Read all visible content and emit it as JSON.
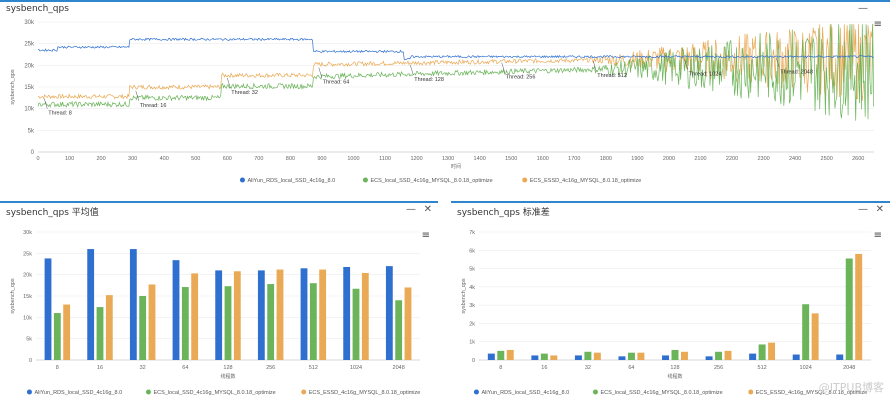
{
  "panels": {
    "top": {
      "title": "sysbench_qps",
      "minimize": "—",
      "menu": "≡"
    },
    "left": {
      "title": "sysbench_qps 平均值",
      "minimize": "—",
      "close": "✕",
      "menu": "≡"
    },
    "right": {
      "title": "sysbench_qps 标准差",
      "minimize": "—",
      "close": "✕",
      "menu": "≡"
    }
  },
  "watermark": "@ITPUB博客",
  "colors": {
    "blue": "#2e6fcf",
    "green": "#6bb45a",
    "orange": "#eaaa55"
  },
  "chart_data": [
    {
      "type": "line",
      "title": "sysbench_qps",
      "xlabel": "时间",
      "ylabel": "sysbench_qps",
      "xlim": [
        0,
        2650
      ],
      "ylim": [
        0,
        30000
      ],
      "x_ticks": [
        0,
        100,
        200,
        300,
        400,
        500,
        600,
        700,
        800,
        900,
        1000,
        1100,
        1200,
        1300,
        1400,
        1500,
        1600,
        1700,
        1800,
        1900,
        2000,
        2100,
        2200,
        2300,
        2400,
        2500,
        2600
      ],
      "y_ticks": [
        0,
        5000,
        10000,
        15000,
        20000,
        25000,
        30000
      ],
      "y_tick_labels": [
        "0",
        "5k",
        "10k",
        "15k",
        "20k",
        "25k",
        "30k"
      ],
      "series": [
        {
          "name": "AliYun_RDS_local_SSD_4c16g_8.0",
          "color": "#2e6fcf",
          "x": [
            0,
            60,
            60,
            290,
            290,
            870,
            870,
            1160,
            1160,
            2650
          ],
          "y": [
            23500,
            23500,
            24200,
            24200,
            26000,
            26000,
            23200,
            23200,
            22000,
            22000
          ],
          "noise": 250
        },
        {
          "name": "ECS_local_SSD_4c16g_MYSQL_8.0.18_optimize",
          "color": "#6bb45a",
          "x": [
            0,
            290,
            290,
            580,
            580,
            870,
            870,
            2000,
            2650
          ],
          "y": [
            11000,
            11000,
            12500,
            12500,
            15200,
            15200,
            17400,
            19500,
            19500
          ],
          "noise": 600
        },
        {
          "name": "ECS_ESSD_4c16g_MYSQL_8.0.18_optimize",
          "color": "#eaaa55",
          "x": [
            0,
            290,
            290,
            580,
            580,
            870,
            870,
            2000,
            2650
          ],
          "y": [
            12800,
            12800,
            15000,
            15000,
            17700,
            17700,
            20200,
            21500,
            21500
          ],
          "noise": 500
        }
      ],
      "annotations": [
        {
          "label": "Thread: 8",
          "x": 20,
          "y": 10000
        },
        {
          "label": "Thread: 16",
          "x": 310,
          "y": 11800
        },
        {
          "label": "Thread: 32",
          "x": 600,
          "y": 14800
        },
        {
          "label": "Thread: 64",
          "x": 890,
          "y": 17200
        },
        {
          "label": "Thread: 128",
          "x": 1180,
          "y": 17800
        },
        {
          "label": "Thread: 256",
          "x": 1470,
          "y": 18300
        },
        {
          "label": "Thread: 512",
          "x": 1760,
          "y": 18700
        },
        {
          "label": "Thread: 1024",
          "x": 2050,
          "y": 19000
        },
        {
          "label": "Thread: 2048",
          "x": 2340,
          "y": 19500
        }
      ],
      "grid": true,
      "legend": "bottom"
    },
    {
      "type": "bar",
      "title": "sysbench_qps 平均值",
      "xlabel": "线程数",
      "ylabel": "sysbench_qps",
      "categories": [
        "8",
        "16",
        "32",
        "64",
        "128",
        "256",
        "512",
        "1024",
        "2048"
      ],
      "ylim": [
        0,
        30000
      ],
      "y_ticks": [
        0,
        5000,
        10000,
        15000,
        20000,
        25000,
        30000
      ],
      "y_tick_labels": [
        "0",
        "5k",
        "10k",
        "15k",
        "20k",
        "25k",
        "30k"
      ],
      "series": [
        {
          "name": "AliYun_RDS_local_SSD_4c16g_8.0",
          "color": "#2e6fcf",
          "values": [
            23800,
            26000,
            26000,
            23400,
            21000,
            21000,
            21500,
            21800,
            22000
          ]
        },
        {
          "name": "ECS_local_SSD_4c16g_MYSQL_8.0.18_optimize",
          "color": "#6bb45a",
          "values": [
            11000,
            12400,
            15000,
            17100,
            17300,
            17800,
            18000,
            16700,
            14000
          ]
        },
        {
          "name": "ECS_ESSD_4c16g_MYSQL_8.0.18_optimize",
          "color": "#eaaa55",
          "values": [
            13000,
            15200,
            17700,
            20300,
            20800,
            21200,
            21200,
            20400,
            17000
          ]
        }
      ],
      "grid": true,
      "legend": "bottom"
    },
    {
      "type": "bar",
      "title": "sysbench_qps 标准差",
      "xlabel": "线程数",
      "ylabel": "sysbench_qps",
      "categories": [
        "8",
        "16",
        "32",
        "64",
        "128",
        "256",
        "512",
        "1024",
        "2048"
      ],
      "ylim": [
        0,
        7000
      ],
      "y_ticks": [
        0,
        1000,
        2000,
        3000,
        4000,
        5000,
        6000,
        7000
      ],
      "y_tick_labels": [
        "0",
        "1k",
        "2k",
        "3k",
        "4k",
        "5k",
        "6k",
        "7k"
      ],
      "series": [
        {
          "name": "AliYun_RDS_local_SSD_4c16g_8.0",
          "color": "#2e6fcf",
          "values": [
            350,
            250,
            250,
            200,
            250,
            200,
            350,
            300,
            300
          ]
        },
        {
          "name": "ECS_local_SSD_4c16g_MYSQL_8.0.18_optimize",
          "color": "#6bb45a",
          "values": [
            500,
            350,
            450,
            400,
            550,
            450,
            850,
            3050,
            5550
          ]
        },
        {
          "name": "ECS_ESSD_4c16g_MYSQL_8.0.18_optimize",
          "color": "#eaaa55",
          "values": [
            550,
            250,
            400,
            400,
            450,
            500,
            950,
            2550,
            5800
          ]
        }
      ],
      "grid": true,
      "legend": "bottom"
    }
  ]
}
